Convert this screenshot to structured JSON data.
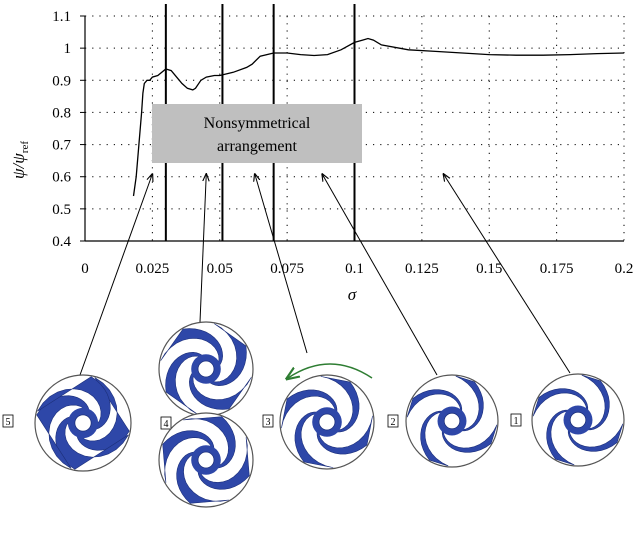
{
  "chart_data": {
    "type": "line",
    "xlabel_symbol": "σ",
    "ylabel_symbol": "ψ/ψ",
    "ylabel_subscript": "ref",
    "xlim": [
      0,
      0.2
    ],
    "ylim": [
      0.4,
      1.1
    ],
    "x_ticks": [
      0,
      0.025,
      0.05,
      0.075,
      0.1,
      0.125,
      0.15,
      0.175,
      0.2
    ],
    "x_tick_labels": [
      "0",
      "0.025",
      "0.05",
      "0.075",
      "0.1",
      "0.125",
      "0.15",
      "0.175",
      "0.2"
    ],
    "y_ticks": [
      0.4,
      0.5,
      0.6,
      0.7,
      0.8,
      0.9,
      1,
      1.1
    ],
    "y_tick_labels": [
      "0.4",
      "0.5",
      "0.6",
      "0.7",
      "0.8",
      "0.9",
      "1",
      "1.1"
    ],
    "grid": "dotted",
    "series": [
      {
        "x": [
          0.018,
          0.019,
          0.02,
          0.021,
          0.0215,
          0.022,
          0.023,
          0.024,
          0.025,
          0.027,
          0.03,
          0.032,
          0.034,
          0.036,
          0.038,
          0.04,
          0.041,
          0.043,
          0.045,
          0.048,
          0.05,
          0.055,
          0.06,
          0.062,
          0.065,
          0.07,
          0.075,
          0.08,
          0.085,
          0.09,
          0.095,
          0.1,
          0.103,
          0.105,
          0.107,
          0.11,
          0.12,
          0.13,
          0.14,
          0.15,
          0.16,
          0.17,
          0.18,
          0.19,
          0.2
        ],
        "y": [
          0.54,
          0.6,
          0.7,
          0.8,
          0.86,
          0.89,
          0.9,
          0.9,
          0.91,
          0.915,
          0.935,
          0.93,
          0.91,
          0.89,
          0.875,
          0.87,
          0.875,
          0.9,
          0.91,
          0.915,
          0.915,
          0.925,
          0.94,
          0.95,
          0.975,
          0.985,
          0.985,
          0.98,
          0.977,
          0.98,
          0.995,
          1.018,
          1.025,
          1.03,
          1.025,
          1.01,
          0.995,
          0.99,
          0.985,
          0.98,
          0.978,
          0.978,
          0.98,
          0.983,
          0.985
        ]
      }
    ],
    "vertical_lines_x": [
      0.03,
      0.051,
      0.07,
      0.1
    ],
    "annotation_box": "Nonsymmetrical\narrangement",
    "annotation_box_color": "#bfbfbf",
    "impeller_labels": [
      "5",
      "4",
      "3",
      "2",
      "1"
    ],
    "impeller_blade_color": "#2e47a8",
    "rotation_arrow_color": "#2e7d32",
    "impeller_pointer_x": [
      0.025,
      0.045,
      0.063,
      0.088,
      0.133
    ]
  }
}
